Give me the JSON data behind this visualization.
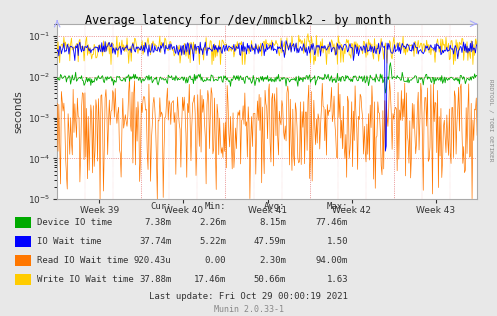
{
  "title": "Average latency for /dev/mmcblk2 - by month",
  "ylabel": "seconds",
  "xlabel_ticks": [
    "Week 39",
    "Week 40",
    "Week 41",
    "Week 42",
    "Week 43"
  ],
  "ylim_log": [
    1e-05,
    0.2
  ],
  "background_color": "#e8e8e8",
  "plot_bg_color": "#ffffff",
  "legend_items": [
    {
      "label": "Device IO time",
      "color": "#00aa00"
    },
    {
      "label": "IO Wait time",
      "color": "#0000ff"
    },
    {
      "label": "Read IO Wait time",
      "color": "#ff7700"
    },
    {
      "label": "Write IO Wait time",
      "color": "#ffcc00"
    }
  ],
  "table_headers": [
    "Cur:",
    "Min:",
    "Avg:",
    "Max:"
  ],
  "table_rows": [
    [
      "7.38m",
      "2.26m",
      "8.15m",
      "77.46m"
    ],
    [
      "37.74m",
      "5.22m",
      "47.59m",
      "1.50"
    ],
    [
      "920.43u",
      "0.00",
      "2.30m",
      "94.00m"
    ],
    [
      "37.88m",
      "17.46m",
      "50.66m",
      "1.63"
    ]
  ],
  "last_update": "Last update: Fri Oct 29 00:00:19 2021",
  "munin_version": "Munin 2.0.33-1",
  "rrdtool_label": "RRDTOOL / TOBI OETIKER",
  "n_points": 500
}
